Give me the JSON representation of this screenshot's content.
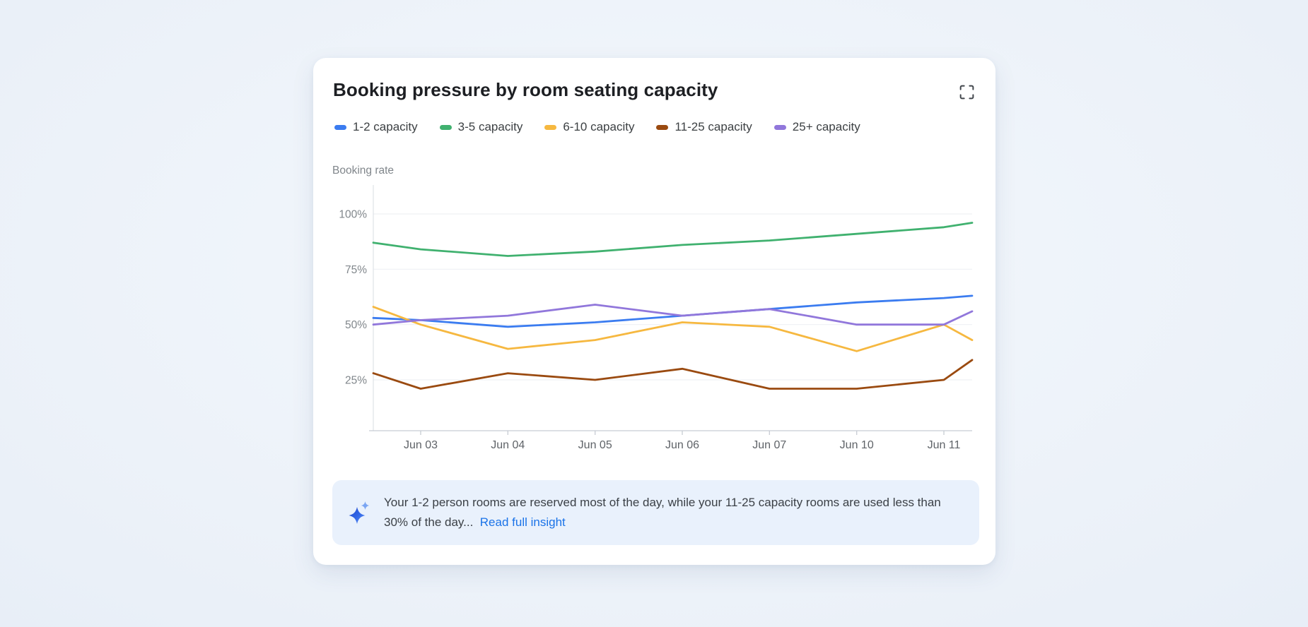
{
  "card": {
    "title": "Booking pressure by room seating capacity",
    "expand_icon": "fullscreen-expand-icon",
    "legend": [
      {
        "label": "1-2 capacity",
        "color": "#3B7CF0"
      },
      {
        "label": "3-5 capacity",
        "color": "#40B16F"
      },
      {
        "label": "6-10 capacity",
        "color": "#F6B840"
      },
      {
        "label": "11-25 capacity",
        "color": "#9A4A10"
      },
      {
        "label": "25+ capacity",
        "color": "#9177DB"
      }
    ],
    "insight": {
      "icon": "ai-sparkle",
      "text": "Your 1-2 person rooms are reserved most of the day, while your 11-25 capacity rooms are used less than 30% of the day...",
      "link_label": "Read full insight",
      "link_color": "#1A73E8"
    }
  },
  "chart_data": {
    "type": "line",
    "title": "Booking pressure by room seating capacity",
    "ylabel": "Booking rate",
    "unit": "%",
    "grid": "horizontal",
    "legend_position": "top",
    "ylim": [
      0,
      112
    ],
    "y_ticks": [
      {
        "label": "100%",
        "value": 100
      },
      {
        "label": "75%",
        "value": 75
      },
      {
        "label": "50%",
        "value": 50
      },
      {
        "label": "25%",
        "value": 25
      }
    ],
    "categories": [
      "",
      "Jun 03",
      "Jun 04",
      "Jun 05",
      "Jun 06",
      "Jun 07",
      "Jun 10",
      "Jun 11",
      ""
    ],
    "x_tick_labels": [
      "Jun 03",
      "Jun 04",
      "Jun 05",
      "Jun 06",
      "Jun 07",
      "Jun 10",
      "Jun 11"
    ],
    "series": [
      {
        "name": "1-2 capacity",
        "color": "#3B7CF0",
        "values": [
          53,
          52,
          49,
          51,
          54,
          57,
          60,
          62,
          63
        ]
      },
      {
        "name": "3-5 capacity",
        "color": "#40B16F",
        "values": [
          87,
          84,
          81,
          83,
          86,
          88,
          91,
          94,
          96
        ]
      },
      {
        "name": "6-10 capacity",
        "color": "#F6B840",
        "values": [
          58,
          50,
          39,
          43,
          51,
          49,
          38,
          50,
          43
        ]
      },
      {
        "name": "11-25 capacity",
        "color": "#9A4A10",
        "values": [
          28,
          21,
          28,
          25,
          30,
          21,
          21,
          25,
          34
        ]
      },
      {
        "name": "25+ capacity",
        "color": "#9177DB",
        "values": [
          50,
          52,
          54,
          59,
          54,
          57,
          50,
          50,
          56
        ]
      }
    ]
  }
}
